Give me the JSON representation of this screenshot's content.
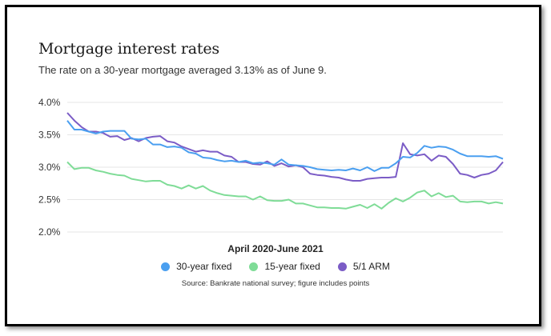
{
  "chart_data": {
    "type": "line",
    "title": "Mortgage interest rates",
    "subtitle": "The rate on a 30-year mortgage averaged 3.13% as of June 9.",
    "xlabel": "April 2020-June 2021",
    "ylabel": "",
    "ylim": [
      2.0,
      4.0
    ],
    "yticks": [
      "4.0%",
      "3.5%",
      "3.0%",
      "2.5%",
      "2.0%"
    ],
    "ytick_values": [
      4.0,
      3.5,
      3.0,
      2.5,
      2.0
    ],
    "grid": "horizontal",
    "legend_position": "bottom",
    "source": "Source: Bankrate national survey; figure includes points",
    "x": [
      0,
      1,
      2,
      3,
      4,
      5,
      6,
      7,
      8,
      9,
      10,
      11,
      12,
      13,
      14,
      15,
      16,
      17,
      18,
      19,
      20,
      21,
      22,
      23,
      24,
      25,
      26,
      27,
      28,
      29,
      30,
      31,
      32,
      33,
      34,
      35,
      36,
      37,
      38,
      39,
      40,
      41,
      42,
      43,
      44,
      45,
      46,
      47,
      48,
      49,
      50,
      51,
      52,
      53,
      54,
      55,
      56,
      57,
      58,
      59,
      60,
      61
    ],
    "series": [
      {
        "name": "30-year fixed",
        "color": "#4a9ff0",
        "values": [
          3.72,
          3.58,
          3.58,
          3.55,
          3.52,
          3.55,
          3.56,
          3.56,
          3.56,
          3.44,
          3.43,
          3.44,
          3.35,
          3.35,
          3.31,
          3.32,
          3.3,
          3.23,
          3.21,
          3.15,
          3.14,
          3.11,
          3.09,
          3.1,
          3.08,
          3.1,
          3.06,
          3.07,
          3.06,
          3.04,
          3.12,
          3.04,
          3.03,
          3.02,
          3.0,
          2.97,
          2.96,
          2.95,
          2.96,
          2.95,
          2.98,
          2.95,
          3.0,
          2.94,
          2.99,
          2.99,
          3.06,
          3.16,
          3.15,
          3.22,
          3.33,
          3.3,
          3.32,
          3.31,
          3.27,
          3.21,
          3.17,
          3.17,
          3.17,
          3.16,
          3.17,
          3.13
        ]
      },
      {
        "name": "15-year fixed",
        "color": "#7fdc97",
        "values": [
          3.08,
          2.97,
          2.99,
          2.99,
          2.95,
          2.93,
          2.9,
          2.88,
          2.87,
          2.82,
          2.8,
          2.78,
          2.79,
          2.79,
          2.73,
          2.71,
          2.67,
          2.72,
          2.67,
          2.71,
          2.64,
          2.6,
          2.57,
          2.56,
          2.55,
          2.55,
          2.5,
          2.55,
          2.49,
          2.48,
          2.48,
          2.5,
          2.44,
          2.44,
          2.41,
          2.38,
          2.38,
          2.37,
          2.37,
          2.36,
          2.39,
          2.42,
          2.37,
          2.43,
          2.36,
          2.45,
          2.52,
          2.47,
          2.53,
          2.61,
          2.64,
          2.55,
          2.6,
          2.54,
          2.56,
          2.47,
          2.46,
          2.47,
          2.47,
          2.44,
          2.46,
          2.44
        ]
      },
      {
        "name": "5/1 ARM",
        "color": "#7b5cc6",
        "values": [
          3.84,
          3.72,
          3.62,
          3.55,
          3.55,
          3.53,
          3.47,
          3.48,
          3.42,
          3.45,
          3.4,
          3.45,
          3.47,
          3.48,
          3.4,
          3.38,
          3.32,
          3.28,
          3.24,
          3.26,
          3.24,
          3.24,
          3.18,
          3.16,
          3.08,
          3.08,
          3.05,
          3.04,
          3.09,
          3.02,
          3.06,
          3.01,
          3.03,
          3.0,
          2.9,
          2.88,
          2.87,
          2.85,
          2.84,
          2.81,
          2.79,
          2.79,
          2.82,
          2.83,
          2.84,
          2.84,
          2.85,
          3.37,
          3.2,
          3.18,
          3.2,
          3.1,
          3.18,
          3.16,
          3.05,
          2.9,
          2.88,
          2.84,
          2.88,
          2.9,
          2.95,
          3.08
        ]
      }
    ]
  }
}
